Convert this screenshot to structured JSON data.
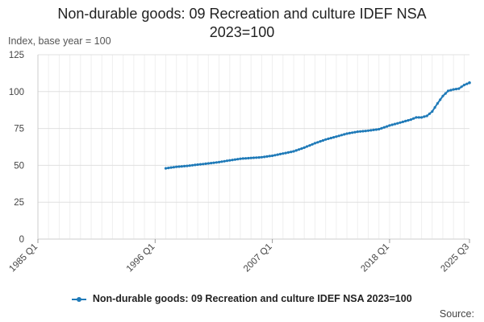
{
  "chart_data": {
    "type": "line",
    "title": "Non-durable goods: 09 Recreation and culture IDEF NSA 2023=100",
    "title_lines": [
      "Non-durable goods: 09 Recreation and culture IDEF NSA",
      "2023=100"
    ],
    "ylabel": "Index, base year = 100",
    "ylim": [
      0,
      125
    ],
    "yticks": [
      0,
      25,
      50,
      75,
      100,
      125
    ],
    "x_range": [
      "1985 Q1",
      "2025 Q3"
    ],
    "xticks": [
      "1985 Q1",
      "1996 Q1",
      "2007 Q1",
      "2018 Q1",
      "2025 Q3"
    ],
    "grid": true,
    "legend_position": "bottom",
    "series": [
      {
        "name": "Non-durable goods: 09 Recreation and culture IDEF NSA 2023=100",
        "color": "#1f7ab8",
        "points": [
          [
            "1997 Q1",
            48.0
          ],
          [
            "1998 Q1",
            49.0
          ],
          [
            "1999 Q1",
            49.6
          ],
          [
            "2000 Q1",
            50.5
          ],
          [
            "2001 Q1",
            51.3
          ],
          [
            "2002 Q1",
            52.2
          ],
          [
            "2003 Q1",
            53.4
          ],
          [
            "2004 Q1",
            54.5
          ],
          [
            "2005 Q1",
            55.0
          ],
          [
            "2006 Q1",
            55.5
          ],
          [
            "2007 Q1",
            56.5
          ],
          [
            "2008 Q1",
            58.0
          ],
          [
            "2009 Q1",
            59.5
          ],
          [
            "2010 Q1",
            62.0
          ],
          [
            "2011 Q1",
            65.0
          ],
          [
            "2012 Q1",
            67.5
          ],
          [
            "2013 Q1",
            69.5
          ],
          [
            "2014 Q1",
            71.5
          ],
          [
            "2015 Q1",
            72.8
          ],
          [
            "2016 Q1",
            73.5
          ],
          [
            "2017 Q1",
            74.5
          ],
          [
            "2018 Q1",
            77.0
          ],
          [
            "2019 Q1",
            79.0
          ],
          [
            "2020 Q1",
            81.0
          ],
          [
            "2020 Q3",
            82.5
          ],
          [
            "2021 Q1",
            82.5
          ],
          [
            "2021 Q3",
            83.5
          ],
          [
            "2022 Q1",
            86.5
          ],
          [
            "2022 Q3",
            92.0
          ],
          [
            "2023 Q1",
            97.0
          ],
          [
            "2023 Q3",
            100.5
          ],
          [
            "2024 Q1",
            101.5
          ],
          [
            "2024 Q3",
            102.0
          ],
          [
            "2025 Q1",
            104.5
          ],
          [
            "2025 Q3",
            106.0
          ]
        ]
      }
    ]
  },
  "source_label": "Source:"
}
